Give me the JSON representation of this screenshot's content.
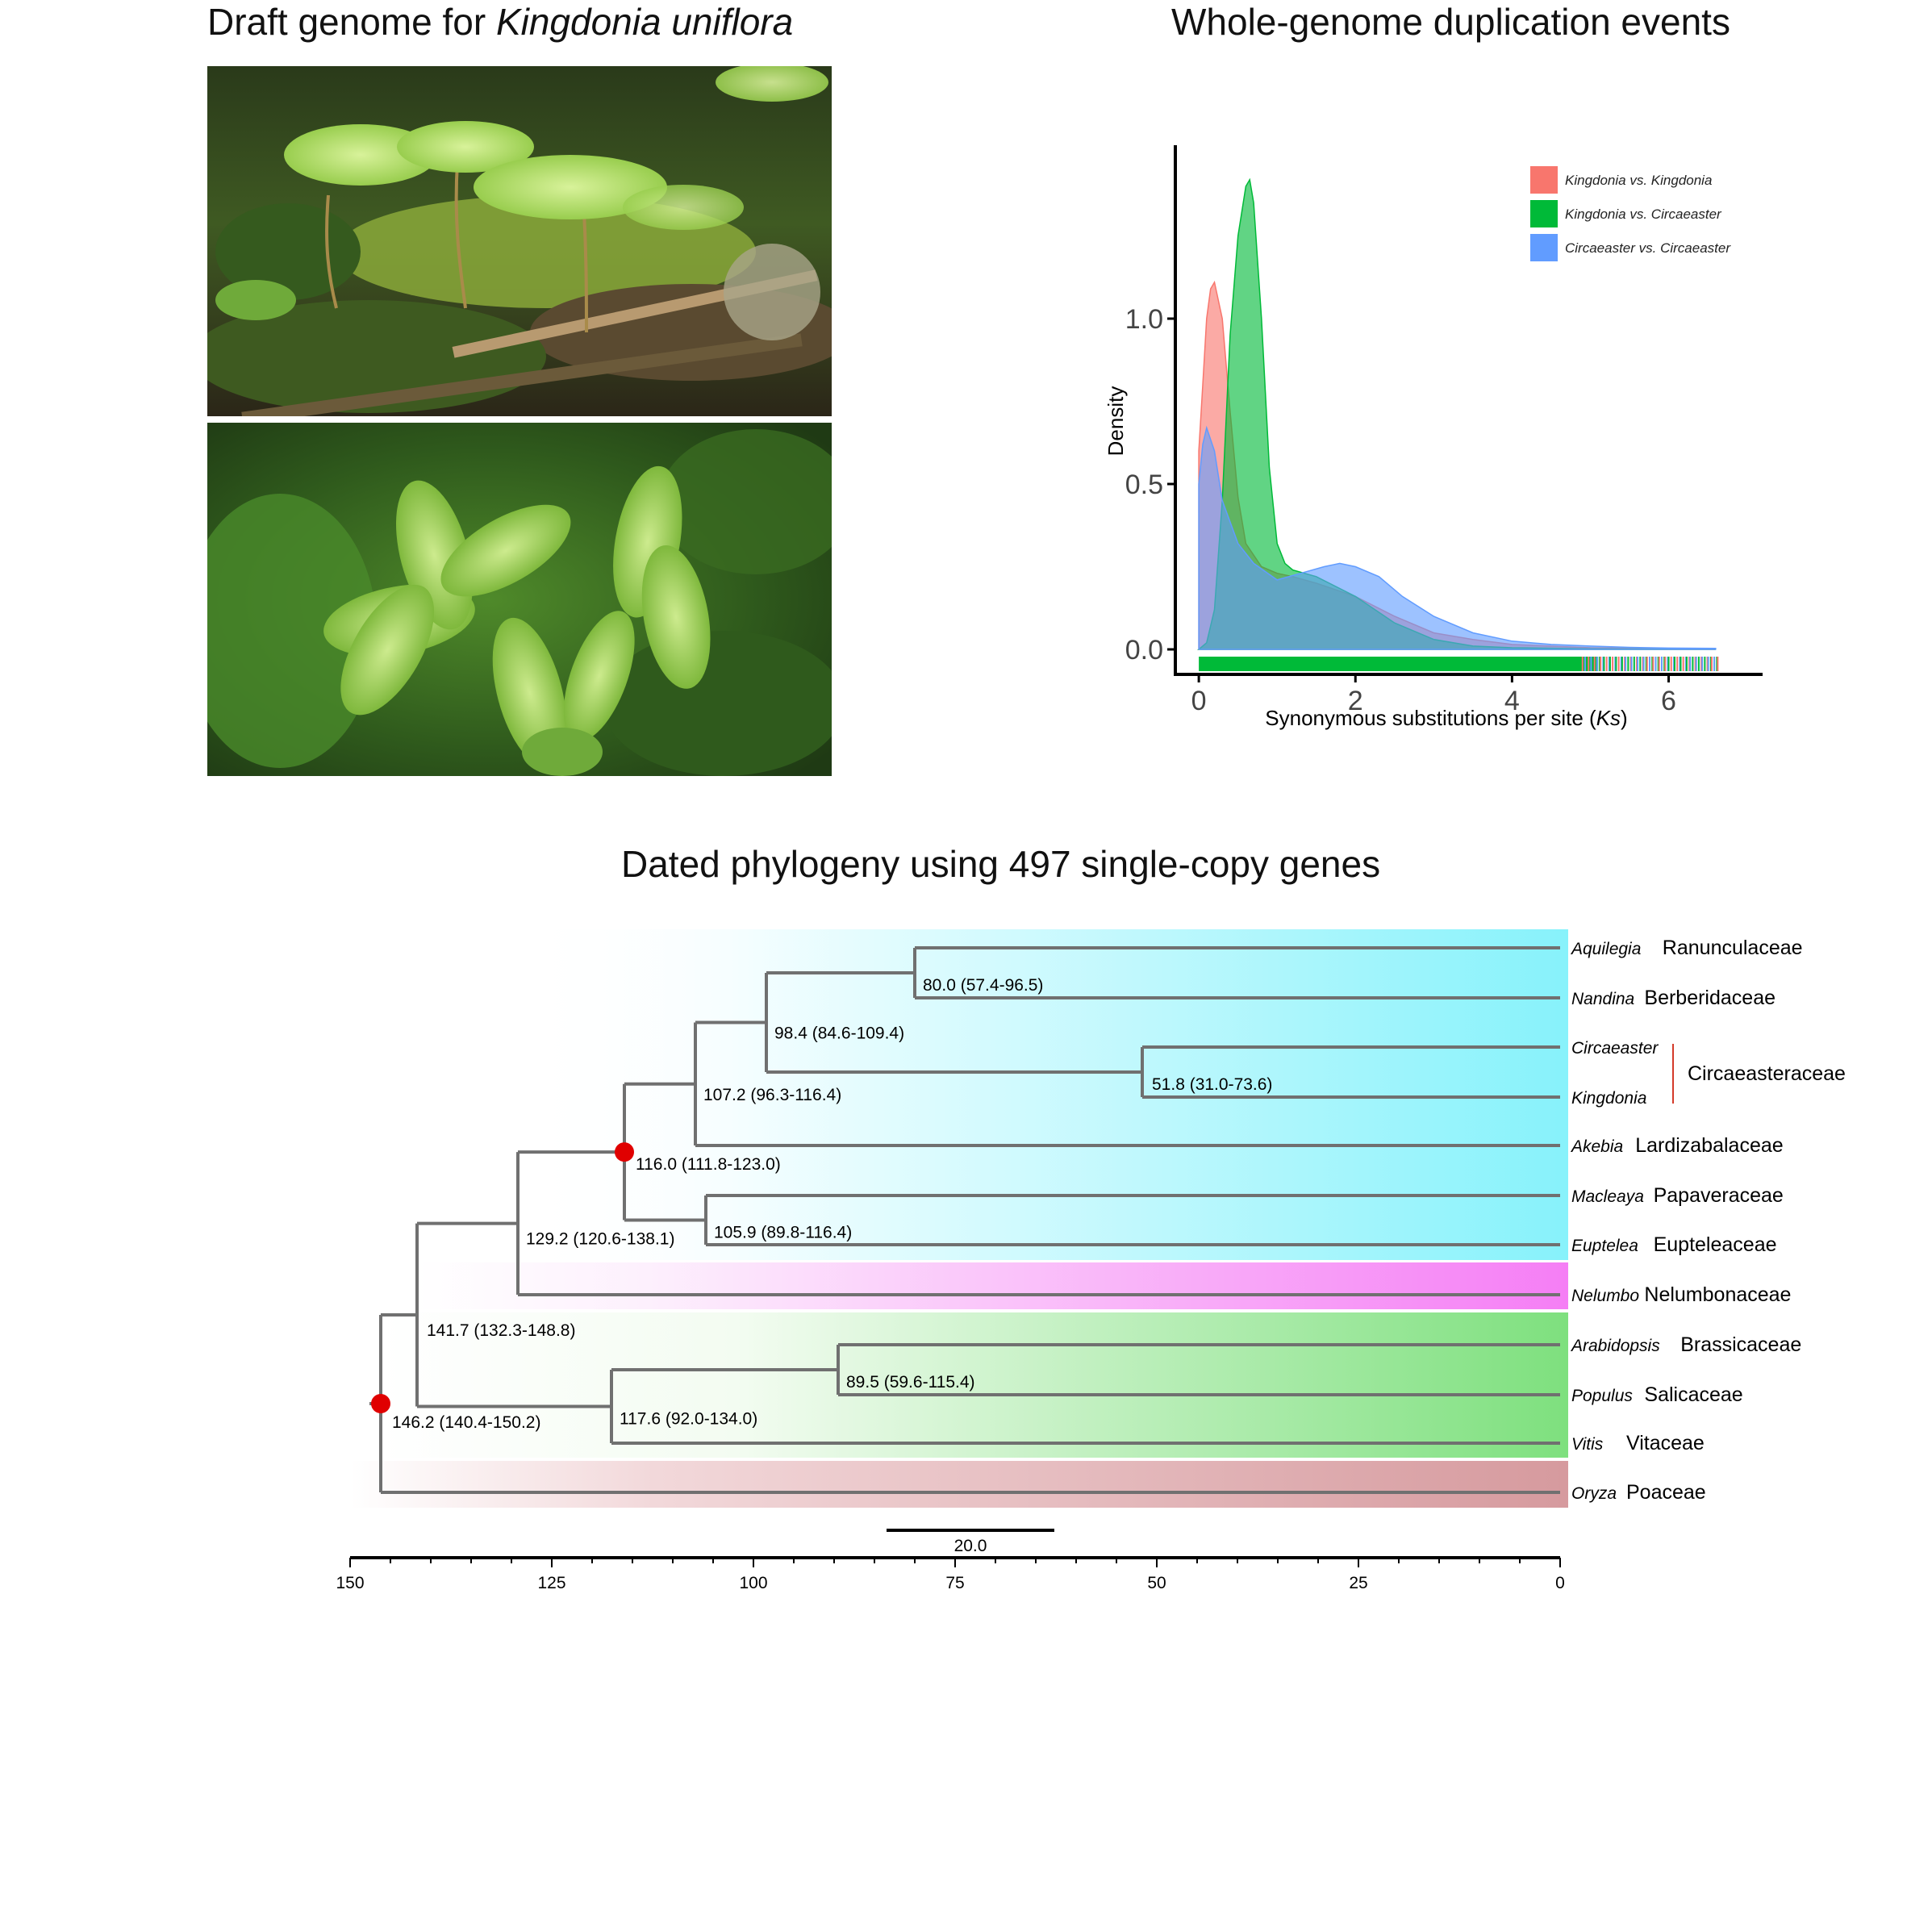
{
  "panels": {
    "photo": {
      "title_prefix": "Draft genome for ",
      "title_species": "Kingdonia uniflora"
    },
    "ks": {
      "title": "Whole-genome duplication events"
    },
    "phylogeny": {
      "title": "Dated phylogeny using 497 single-copy genes"
    }
  },
  "chart_data": [
    {
      "type": "area",
      "title": "Whole-genome duplication events",
      "xlabel_prefix": "Synonymous substitutions per site (",
      "xlabel_italic": "Ks",
      "xlabel_suffix": ")",
      "ylabel": "Density",
      "xlim": [
        -0.3,
        7.2
      ],
      "ylim": [
        0,
        1.5
      ],
      "xticks": [
        0,
        2,
        4,
        6
      ],
      "yticks": [
        0.0,
        0.5,
        1.0
      ],
      "ytick_labels": [
        "0.0",
        "0.5",
        "1.0"
      ],
      "grid": false,
      "legend_position": "top-right",
      "series": [
        {
          "name": "Kingdonia vs. Kingdonia",
          "color": "#f8766d",
          "x": [
            0,
            0.05,
            0.1,
            0.15,
            0.2,
            0.3,
            0.4,
            0.5,
            0.6,
            0.8,
            1.0,
            1.2,
            1.5,
            2.0,
            2.5,
            3.0,
            3.5,
            4.0,
            5.0,
            6.6
          ],
          "y": [
            0.6,
            0.8,
            1.0,
            1.09,
            1.11,
            1.0,
            0.72,
            0.46,
            0.32,
            0.25,
            0.23,
            0.22,
            0.2,
            0.16,
            0.1,
            0.05,
            0.03,
            0.015,
            0.005,
            0.0
          ]
        },
        {
          "name": "Kingdonia vs. Circaeaster",
          "color": "#00ba38",
          "x": [
            0,
            0.1,
            0.2,
            0.3,
            0.4,
            0.5,
            0.6,
            0.65,
            0.7,
            0.8,
            0.9,
            1.0,
            1.1,
            1.2,
            1.5,
            2.0,
            2.5,
            3.0,
            3.5,
            4.0,
            5.0,
            6.6
          ],
          "y": [
            0.0,
            0.02,
            0.12,
            0.45,
            0.95,
            1.25,
            1.4,
            1.42,
            1.35,
            1.0,
            0.55,
            0.32,
            0.26,
            0.24,
            0.22,
            0.16,
            0.08,
            0.03,
            0.01,
            0.005,
            0.002,
            0.0
          ]
        },
        {
          "name": "Circaeaster vs. Circaeaster",
          "color": "#619cff",
          "x": [
            0,
            0.05,
            0.1,
            0.2,
            0.3,
            0.5,
            0.7,
            1.0,
            1.3,
            1.6,
            1.8,
            2.0,
            2.3,
            2.6,
            3.0,
            3.5,
            4.0,
            4.5,
            5.0,
            5.5,
            6.0,
            6.6
          ],
          "y": [
            0.5,
            0.62,
            0.67,
            0.6,
            0.45,
            0.32,
            0.26,
            0.21,
            0.23,
            0.25,
            0.26,
            0.25,
            0.22,
            0.16,
            0.1,
            0.05,
            0.025,
            0.015,
            0.01,
            0.006,
            0.004,
            0.003
          ]
        }
      ]
    },
    {
      "type": "tree",
      "title": "Dated phylogeny using 497 single-copy genes",
      "axis_ticks": [
        150,
        125,
        100,
        75,
        50,
        25,
        0
      ],
      "scale_bar_label": "20.0",
      "nodes": [
        {
          "id": "n_aq_na",
          "age": 80.0,
          "label": "80.0 (57.4-96.5)"
        },
        {
          "id": "n_ranberi_circ",
          "age": 98.4,
          "label": "98.4 (84.6-109.4)"
        },
        {
          "id": "n_circ_king",
          "age": 51.8,
          "label": "51.8 (31.0-73.6)"
        },
        {
          "id": "n_with_akebia",
          "age": 107.2,
          "label": "107.2 (96.3-116.4)"
        },
        {
          "id": "n_red1",
          "age": 116.0,
          "label": "116.0 (111.8-123.0)",
          "marked": true
        },
        {
          "id": "n_mac_eup",
          "age": 105.9,
          "label": "105.9 (89.8-116.4)"
        },
        {
          "id": "n_with_nelumbo",
          "age": 129.2,
          "label": "129.2 (120.6-138.1)"
        },
        {
          "id": "n_eudicot",
          "age": 141.7,
          "label": "141.7 (132.3-148.8)"
        },
        {
          "id": "n_ara_pop",
          "age": 89.5,
          "label": "89.5 (59.6-115.4)"
        },
        {
          "id": "n_with_vitis",
          "age": 117.6,
          "label": "117.6 (92.0-134.0)"
        },
        {
          "id": "n_root",
          "age": 146.2,
          "label": "146.2 (140.4-150.2)",
          "marked": true
        }
      ],
      "taxa": [
        {
          "genus": "Aquilegia",
          "family": "Ranunculaceae"
        },
        {
          "genus": "Nandina",
          "family": "Berberidaceae"
        },
        {
          "genus": "Circaeaster",
          "family": ""
        },
        {
          "genus": "Kingdonia",
          "family": ""
        },
        {
          "genus": "Akebia",
          "family": "Lardizabalaceae"
        },
        {
          "genus": "Macleaya",
          "family": "Papaveraceae"
        },
        {
          "genus": "Euptelea",
          "family": "Eupteleaceae"
        },
        {
          "genus": "Nelumbo",
          "family": "Nelumbonaceae"
        },
        {
          "genus": "Arabidopsis",
          "family": "Brassicaceae"
        },
        {
          "genus": "Populus",
          "family": "Salicaceae"
        },
        {
          "genus": "Vitis",
          "family": "Vitaceae"
        },
        {
          "genus": "Oryza",
          "family": "Poaceae"
        }
      ],
      "bracket_family": "Circaeasteraceae",
      "colors": {
        "ranunculales": "#7ff0ff",
        "nelumbo": "#f57ef5",
        "core_eudicots": "#7ee07e",
        "monocot": "#d69a9e",
        "branch": "#707070",
        "marker": "#e00000",
        "bracket": "#d43a2a"
      }
    }
  ]
}
